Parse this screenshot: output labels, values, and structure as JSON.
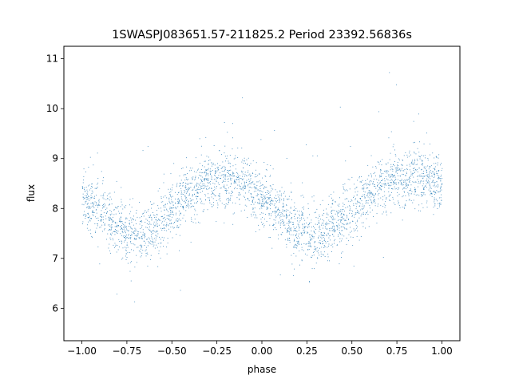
{
  "chart_data": {
    "type": "scatter",
    "title": "1SWASPJ083651.57-211825.2 Period 23392.56836s",
    "xlabel": "phase",
    "ylabel": "flux",
    "xlim": [
      -1.1,
      1.1
    ],
    "ylim": [
      5.35,
      11.25
    ],
    "xticks": [
      -1.0,
      -0.75,
      -0.5,
      -0.25,
      0.0,
      0.25,
      0.5,
      0.75,
      1.0
    ],
    "xtick_labels": [
      "−1.00",
      "−0.75",
      "−0.50",
      "−0.25",
      "0.00",
      "0.25",
      "0.50",
      "0.75",
      "1.00"
    ],
    "yticks": [
      6,
      7,
      8,
      9,
      10,
      11
    ],
    "ytick_labels": [
      "6",
      "7",
      "8",
      "9",
      "10",
      "11"
    ],
    "grid": false,
    "marker_color": "#1f77b4",
    "series": [
      {
        "x_range": [
          -1.0,
          1.0
        ],
        "n_points": 3200,
        "model_phase_x": [
          -1.0,
          -0.9,
          -0.8,
          -0.7,
          -0.6,
          -0.5,
          -0.4,
          -0.3,
          -0.2,
          -0.1,
          0.0,
          0.1,
          0.2,
          0.3,
          0.4,
          0.5,
          0.6,
          0.7,
          0.8,
          0.9,
          1.0
        ],
        "model_flux_mean": [
          8.25,
          7.95,
          7.6,
          7.45,
          7.6,
          7.95,
          8.3,
          8.55,
          8.6,
          8.5,
          8.25,
          7.9,
          7.55,
          7.45,
          7.65,
          8.0,
          8.35,
          8.55,
          8.65,
          8.6,
          8.45
        ],
        "scatter_sd": 0.28
      }
    ]
  }
}
